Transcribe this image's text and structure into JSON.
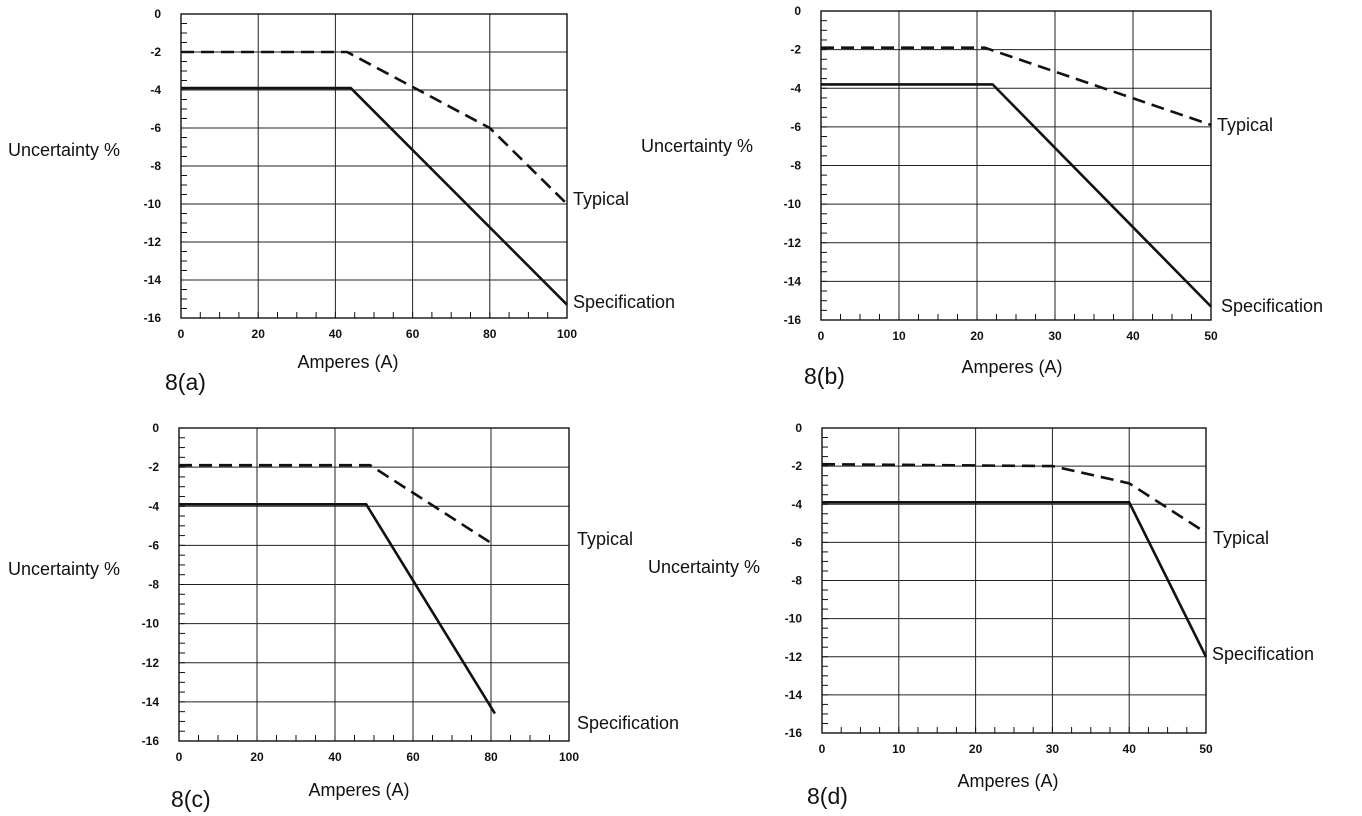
{
  "chart_data": [
    {
      "type": "line",
      "panel_label": "8(a)",
      "xlabel": "Amperes (A)",
      "ylabel": "Uncertainty %",
      "xlim": [
        0,
        100
      ],
      "ylim": [
        -16,
        0
      ],
      "xticks": [
        0,
        20,
        40,
        60,
        80,
        100
      ],
      "yticks": [
        0,
        -2,
        -4,
        -6,
        -8,
        -10,
        -12,
        -14,
        -16
      ],
      "grid": true,
      "series": [
        {
          "name": "Typical",
          "style": "dashed",
          "x": [
            0,
            43,
            80,
            100
          ],
          "y": [
            -2,
            -2,
            -6,
            -10
          ]
        },
        {
          "name": "Specification",
          "style": "solid",
          "x": [
            0,
            44,
            100
          ],
          "y": [
            -3.9,
            -3.9,
            -15.3
          ]
        }
      ]
    },
    {
      "type": "line",
      "panel_label": "8(b)",
      "xlabel": "Amperes (A)",
      "ylabel": "Uncertainty %",
      "xlim": [
        0,
        50
      ],
      "ylim": [
        -16,
        0
      ],
      "xticks": [
        0,
        10,
        20,
        30,
        40,
        50
      ],
      "yticks": [
        0,
        -2,
        -4,
        -6,
        -8,
        -10,
        -12,
        -14,
        -16
      ],
      "grid": true,
      "series": [
        {
          "name": "Typical",
          "style": "dashed",
          "x": [
            0,
            21,
            50
          ],
          "y": [
            -1.9,
            -1.9,
            -5.9
          ]
        },
        {
          "name": "Specification",
          "style": "solid",
          "x": [
            0,
            22,
            50
          ],
          "y": [
            -3.8,
            -3.8,
            -15.3
          ]
        }
      ]
    },
    {
      "type": "line",
      "panel_label": "8(c)",
      "xlabel": "Amperes (A)",
      "ylabel": "Uncertainty %",
      "xlim": [
        0,
        100
      ],
      "ylim": [
        -16,
        0
      ],
      "xticks": [
        0,
        20,
        40,
        60,
        80,
        100
      ],
      "yticks": [
        0,
        -2,
        -4,
        -6,
        -8,
        -10,
        -12,
        -14,
        -16
      ],
      "grid": true,
      "series": [
        {
          "name": "Typical",
          "style": "dashed",
          "x": [
            0,
            49,
            81
          ],
          "y": [
            -1.9,
            -1.9,
            -6
          ]
        },
        {
          "name": "Specification",
          "style": "solid",
          "x": [
            0,
            48,
            81
          ],
          "y": [
            -3.9,
            -3.9,
            -14.6
          ]
        }
      ]
    },
    {
      "type": "line",
      "panel_label": "8(d)",
      "xlabel": "Amperes (A)",
      "ylabel": "Uncertainty %",
      "xlim": [
        0,
        50
      ],
      "ylim": [
        -16,
        0
      ],
      "xticks": [
        0,
        10,
        20,
        30,
        40,
        50
      ],
      "yticks": [
        0,
        -2,
        -4,
        -6,
        -8,
        -10,
        -12,
        -14,
        -16
      ],
      "grid": true,
      "series": [
        {
          "name": "Typical",
          "style": "dashed",
          "x": [
            0,
            30,
            40,
            50
          ],
          "y": [
            -1.9,
            -2,
            -2.9,
            -5.5
          ]
        },
        {
          "name": "Specification",
          "style": "solid",
          "x": [
            0,
            40,
            50
          ],
          "y": [
            -3.9,
            -3.9,
            -12
          ]
        }
      ]
    }
  ]
}
